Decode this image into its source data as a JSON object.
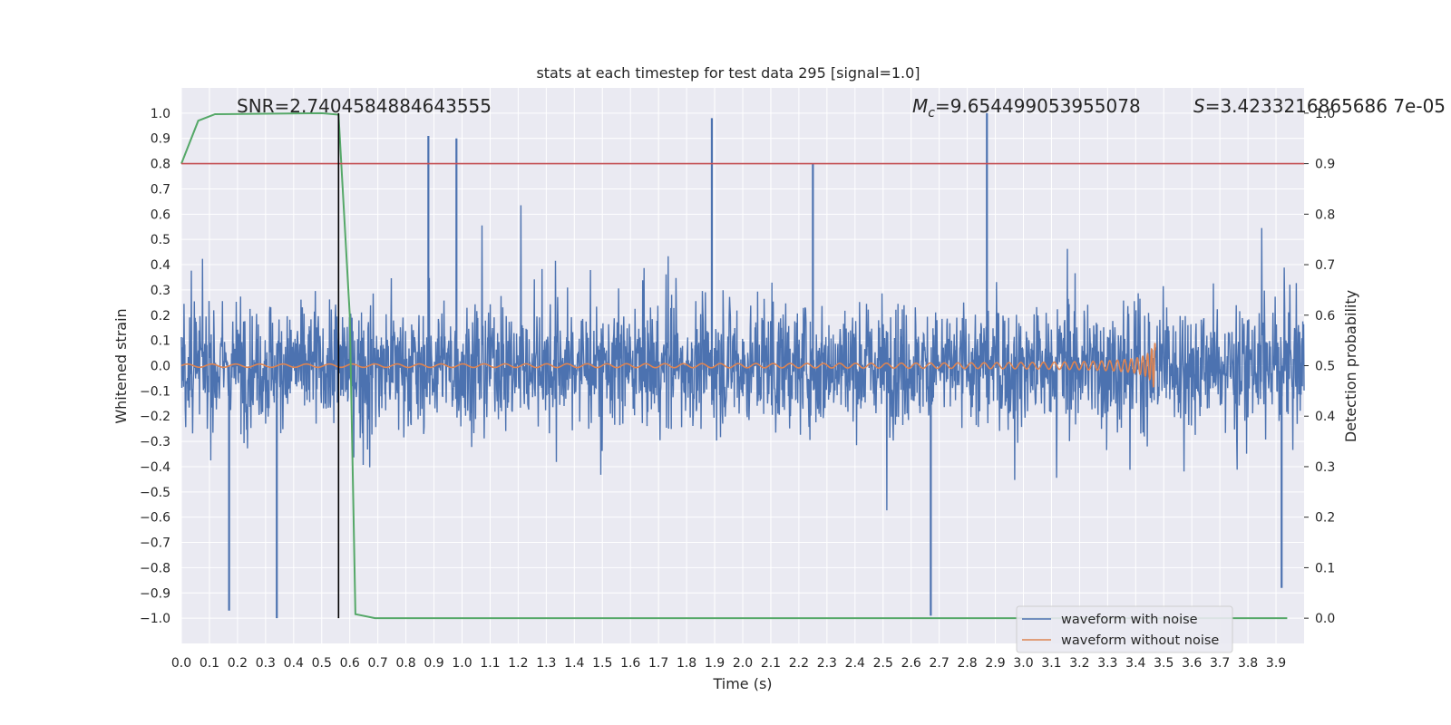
{
  "chart_data": {
    "type": "line",
    "title": "stats at each timestep for test data 295 [signal=1.0]",
    "xlabel": "Time (s)",
    "ylabel": "Whitened strain",
    "y2label": "Detection probability",
    "xlim": [
      0.0,
      4.0
    ],
    "ylim": [
      -1.1,
      1.1
    ],
    "y2lim": [
      -0.05,
      1.05
    ],
    "x_ticks": [
      "0.0",
      "0.1",
      "0.2",
      "0.3",
      "0.4",
      "0.5",
      "0.6",
      "0.7",
      "0.8",
      "0.9",
      "1.0",
      "1.1",
      "1.2",
      "1.3",
      "1.4",
      "1.5",
      "1.6",
      "1.7",
      "1.8",
      "1.9",
      "2.0",
      "2.1",
      "2.2",
      "2.3",
      "2.4",
      "2.5",
      "2.6",
      "2.7",
      "2.8",
      "2.9",
      "3.0",
      "3.1",
      "3.2",
      "3.3",
      "3.4",
      "3.5",
      "3.6",
      "3.7",
      "3.8",
      "3.9"
    ],
    "y_ticks": [
      "1.0",
      "0.9",
      "0.8",
      "0.7",
      "0.6",
      "0.5",
      "0.4",
      "0.3",
      "0.2",
      "0.1",
      "0.0",
      "−0.1",
      "−0.2",
      "−0.3",
      "−0.4",
      "−0.5",
      "−0.6",
      "−0.7",
      "−0.8",
      "−0.9",
      "−1.0"
    ],
    "y2_ticks": [
      "1.0",
      "0.9",
      "0.8",
      "0.7",
      "0.6",
      "0.5",
      "0.4",
      "0.3",
      "0.2",
      "0.1",
      "0.0"
    ],
    "grid": true,
    "legend_position": "bottom-right",
    "annotations": {
      "snr": "SNR=2.7404584884643555",
      "mc_symbol": "M",
      "mc_sub": "c",
      "mc_value": "=9.654499053955078",
      "s_symbol": "S",
      "s_value": "=3.4233216865686 7e-05"
    },
    "series": [
      {
        "name": "waveform with noise",
        "color": "#4c72b0",
        "kind": "noise",
        "x_range": [
          0.0,
          4.0
        ],
        "envelope_y": [
          -1.0,
          1.0
        ],
        "notable_peaks": [
          [
            0.17,
            -0.97
          ],
          [
            0.34,
            -1.0
          ],
          [
            0.88,
            0.91
          ],
          [
            0.98,
            0.9
          ],
          [
            1.89,
            0.98
          ],
          [
            2.25,
            0.8
          ],
          [
            2.67,
            -0.99
          ],
          [
            2.87,
            1.0
          ],
          [
            3.92,
            -0.88
          ]
        ]
      },
      {
        "name": "waveform without noise",
        "color": "#dd8452",
        "kind": "chirp",
        "x_range": [
          0.0,
          3.47
        ],
        "max_amplitude": 0.09
      },
      {
        "name": "detection probability",
        "color": "#55a868",
        "axis": "right",
        "x": [
          0.0,
          0.06,
          0.12,
          0.5,
          0.56,
          0.6,
          0.62,
          0.69,
          3.94
        ],
        "y": [
          0.9,
          0.985,
          0.998,
          1.0,
          0.997,
          0.6,
          0.008,
          0.0,
          0.0
        ]
      }
    ],
    "hlines": [
      {
        "axis": "right",
        "y": 0.9,
        "color": "#c44e52"
      }
    ],
    "vlines": [
      {
        "x": 0.56,
        "color": "#000000"
      }
    ]
  }
}
